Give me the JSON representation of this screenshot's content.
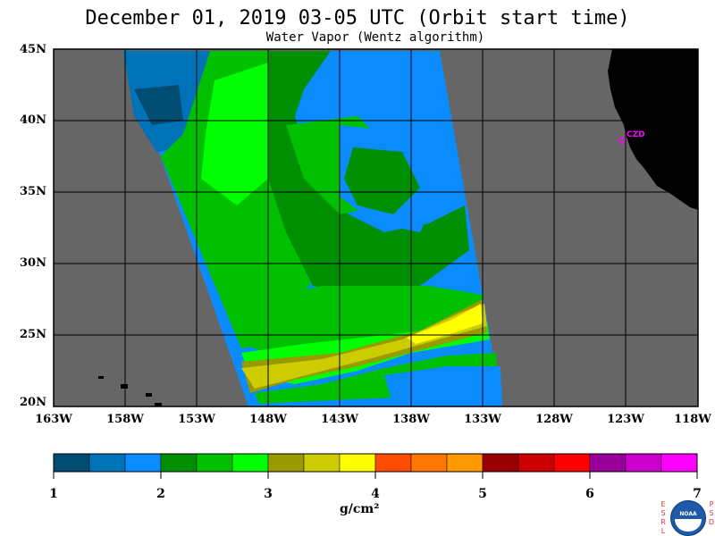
{
  "title": "December 01, 2019  03-05 UTC  (Orbit start time)",
  "subtitle": "Water Vapor (Wentz algorithm)",
  "lat_labels": [
    "45N",
    "40N",
    "35N",
    "30N",
    "25N",
    "20N"
  ],
  "lon_labels": [
    "163W",
    "158W",
    "153W",
    "148W",
    "143W",
    "138W",
    "133W",
    "128W",
    "123W",
    "118W"
  ],
  "station_label": "CZD",
  "colorbar": {
    "ticks": [
      "1",
      "2",
      "3",
      "4",
      "5",
      "6",
      "7"
    ],
    "units": "g/cm²",
    "colors": [
      "#004c73",
      "#0073b8",
      "#0a8cff",
      "#008f00",
      "#00c000",
      "#00ff00",
      "#999900",
      "#cccc00",
      "#ffff00",
      "#ff4d00",
      "#ff7700",
      "#ff9900",
      "#990000",
      "#cc0000",
      "#ff0000",
      "#990099",
      "#cc00cc",
      "#ff00ff"
    ]
  },
  "logo": {
    "left_letters": "ESRL",
    "right_letters": "PSD",
    "center_text": "NOAA"
  }
}
